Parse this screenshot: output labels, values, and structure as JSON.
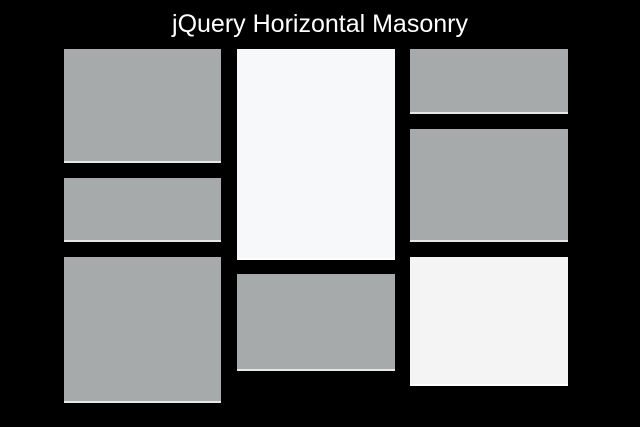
{
  "header": {
    "title": "jQuery Horizontal Masonry"
  },
  "colors": {
    "background": "#000000",
    "tile_gray": "#a7aaaa",
    "tile_white": "#f7f8f9",
    "title_text": "#ffffff"
  },
  "grid": {
    "columns": 3,
    "tiles": [
      {
        "id": "t1",
        "column": 1,
        "color": "gray"
      },
      {
        "id": "t2",
        "column": 1,
        "color": "gray"
      },
      {
        "id": "t3",
        "column": 1,
        "color": "gray"
      },
      {
        "id": "t4",
        "column": 2,
        "color": "white"
      },
      {
        "id": "t5",
        "column": 2,
        "color": "gray"
      },
      {
        "id": "t6",
        "column": 3,
        "color": "gray"
      },
      {
        "id": "t7",
        "column": 3,
        "color": "gray"
      },
      {
        "id": "t8",
        "column": 3,
        "color": "white"
      }
    ]
  }
}
